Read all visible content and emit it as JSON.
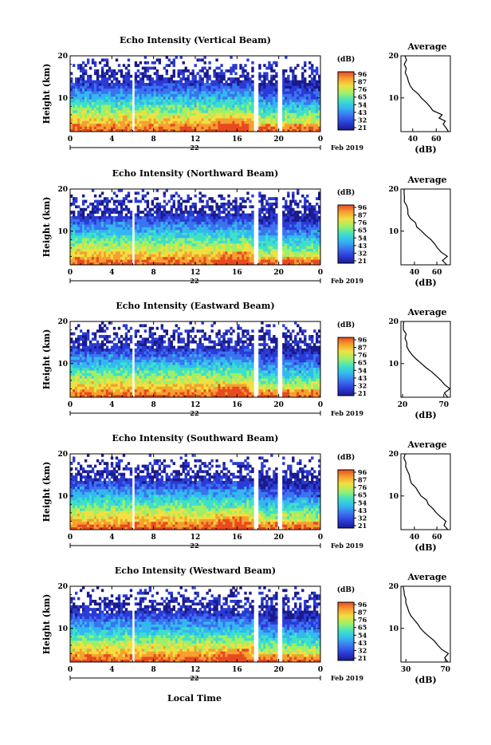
{
  "figure": {
    "date_label": "Feb 2019",
    "day_label": "22",
    "xlabel": "Local Time",
    "colorbar_unit": "(dB)",
    "colorbar_ticks": [
      "96",
      "87",
      "76",
      "65",
      "54",
      "43",
      "32",
      "21"
    ],
    "avg_title": "Average",
    "avg_xlabel": "(dB)",
    "colors": [
      "#1a1a8c",
      "#2b3bd6",
      "#3b73f0",
      "#33b8f0",
      "#3fe0c8",
      "#9cf06a",
      "#f0e040",
      "#f5a030",
      "#e84a20"
    ]
  },
  "chart_data": [
    {
      "type": "heatmap",
      "title": "Echo Intensity (Vertical Beam)",
      "ylabel": "Height (km)",
      "xlim": [
        0,
        24
      ],
      "ylim": [
        2,
        20
      ],
      "xticks": [
        "0",
        "4",
        "8",
        "12",
        "16",
        "20",
        "0"
      ],
      "yticks": [
        "10",
        "20"
      ],
      "avg_xticks": [
        "40",
        "60"
      ],
      "avg_xlim": [
        30,
        72
      ],
      "avg_profile": [
        [
          70,
          2
        ],
        [
          68,
          3
        ],
        [
          65,
          3.8
        ],
        [
          68,
          4.5
        ],
        [
          62,
          5.2
        ],
        [
          64,
          6
        ],
        [
          58,
          7
        ],
        [
          55,
          8
        ],
        [
          52,
          9
        ],
        [
          48,
          10
        ],
        [
          45,
          11
        ],
        [
          40,
          12
        ],
        [
          38,
          13
        ],
        [
          36,
          14
        ],
        [
          35,
          15
        ],
        [
          34,
          16
        ],
        [
          35,
          17
        ],
        [
          33,
          18
        ],
        [
          34,
          19
        ],
        [
          33,
          20
        ]
      ]
    },
    {
      "type": "heatmap",
      "title": "Echo Intensity (Northward Beam)",
      "ylabel": "Height (km)",
      "xlim": [
        0,
        24
      ],
      "ylim": [
        2,
        20
      ],
      "xticks": [
        "0",
        "4",
        "8",
        "12",
        "16",
        "20",
        "0"
      ],
      "yticks": [
        "10",
        "20"
      ],
      "avg_xticks": [
        "40",
        "60"
      ],
      "avg_xlim": [
        28,
        72
      ],
      "avg_profile": [
        [
          68,
          2
        ],
        [
          66,
          3
        ],
        [
          70,
          4
        ],
        [
          64,
          5
        ],
        [
          60,
          6
        ],
        [
          57,
          7
        ],
        [
          54,
          8
        ],
        [
          50,
          9
        ],
        [
          46,
          10
        ],
        [
          43,
          11
        ],
        [
          40,
          12
        ],
        [
          37,
          13
        ],
        [
          35,
          14
        ],
        [
          34,
          15
        ],
        [
          33,
          16
        ],
        [
          32,
          17
        ],
        [
          31,
          18
        ],
        [
          30,
          19
        ],
        [
          31,
          20
        ]
      ]
    },
    {
      "type": "heatmap",
      "title": "Echo Intensity (Eastward Beam)",
      "ylabel": "Height (km)",
      "xlim": [
        0,
        24
      ],
      "ylim": [
        2,
        20
      ],
      "xticks": [
        "0",
        "4",
        "8",
        "12",
        "16",
        "20",
        "0"
      ],
      "yticks": [
        "10",
        "20"
      ],
      "avg_xticks": [
        "20",
        "70"
      ],
      "avg_xlim": [
        18,
        78
      ],
      "avg_profile": [
        [
          75,
          2
        ],
        [
          72,
          3
        ],
        [
          76,
          4
        ],
        [
          70,
          5
        ],
        [
          66,
          6
        ],
        [
          60,
          7
        ],
        [
          55,
          8
        ],
        [
          48,
          9
        ],
        [
          42,
          10
        ],
        [
          36,
          11
        ],
        [
          32,
          12
        ],
        [
          28,
          13
        ],
        [
          26,
          14
        ],
        [
          25,
          15
        ],
        [
          24,
          16
        ],
        [
          23,
          17
        ],
        [
          22,
          18
        ],
        [
          21,
          19
        ],
        [
          22,
          20
        ]
      ]
    },
    {
      "type": "heatmap",
      "title": "Echo Intensity (Southward Beam)",
      "ylabel": "Height (km)",
      "xlim": [
        0,
        24
      ],
      "ylim": [
        2,
        20
      ],
      "xticks": [
        "0",
        "4",
        "8",
        "12",
        "16",
        "20",
        "0"
      ],
      "yticks": [
        "10",
        "20"
      ],
      "avg_xticks": [
        "40",
        "60"
      ],
      "avg_xlim": [
        28,
        72
      ],
      "avg_profile": [
        [
          70,
          2
        ],
        [
          67,
          3
        ],
        [
          68,
          4
        ],
        [
          63,
          5
        ],
        [
          60,
          6
        ],
        [
          56,
          7
        ],
        [
          53,
          8
        ],
        [
          50,
          9
        ],
        [
          47,
          10
        ],
        [
          44,
          11
        ],
        [
          41,
          12
        ],
        [
          38,
          13
        ],
        [
          36,
          14
        ],
        [
          35,
          15
        ],
        [
          34,
          16
        ],
        [
          33,
          17
        ],
        [
          32,
          18
        ],
        [
          31,
          19
        ],
        [
          31,
          20
        ]
      ]
    },
    {
      "type": "heatmap",
      "title": "Echo Intensity (Westward Beam)",
      "ylabel": "Height (km)",
      "xlim": [
        0,
        24
      ],
      "ylim": [
        2,
        20
      ],
      "xticks": [
        "0",
        "4",
        "8",
        "12",
        "16",
        "20",
        "0"
      ],
      "yticks": [
        "10",
        "20"
      ],
      "avg_xticks": [
        "30",
        "70"
      ],
      "avg_xlim": [
        25,
        75
      ],
      "avg_profile": [
        [
          72,
          2
        ],
        [
          70,
          3
        ],
        [
          72,
          4
        ],
        [
          66,
          5
        ],
        [
          62,
          6
        ],
        [
          58,
          7
        ],
        [
          54,
          8
        ],
        [
          50,
          9
        ],
        [
          46,
          10
        ],
        [
          42,
          11
        ],
        [
          38,
          12
        ],
        [
          35,
          13
        ],
        [
          33,
          14
        ],
        [
          32,
          15
        ],
        [
          31,
          16
        ],
        [
          30,
          17
        ],
        [
          29,
          18
        ],
        [
          29,
          19
        ],
        [
          28,
          20
        ]
      ]
    }
  ]
}
